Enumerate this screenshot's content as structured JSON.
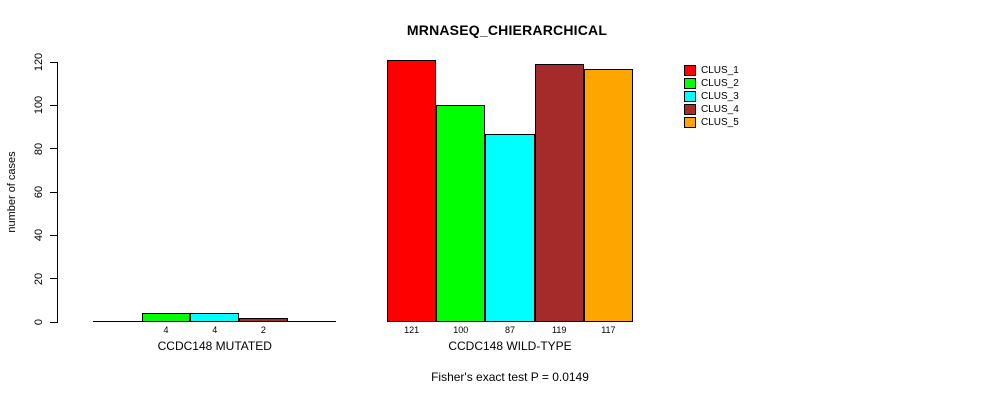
{
  "chart_data": {
    "type": "bar",
    "title": "MRNASEQ_CHIERARCHICAL",
    "ylabel": "number of cases",
    "xlabel": "",
    "ylim": [
      0,
      120
    ],
    "yticks": [
      0,
      20,
      40,
      60,
      80,
      100,
      120
    ],
    "grid": false,
    "legend_position": "right",
    "categories": [
      "CCDC148 MUTATED",
      "CCDC148 WILD-TYPE"
    ],
    "series": [
      {
        "name": "CLUS_1",
        "color": "#FF0000",
        "values": [
          0,
          121
        ]
      },
      {
        "name": "CLUS_2",
        "color": "#00FF00",
        "values": [
          4,
          100
        ]
      },
      {
        "name": "CLUS_3",
        "color": "#00FFFF",
        "values": [
          4,
          87
        ]
      },
      {
        "name": "CLUS_4",
        "color": "#A52A2A",
        "values": [
          2,
          119
        ]
      },
      {
        "name": "CLUS_5",
        "color": "#FFA500",
        "values": [
          0,
          117
        ]
      }
    ],
    "bar_labels": [
      [
        "",
        "4",
        "4",
        "2",
        ""
      ],
      [
        "121",
        "100",
        "87",
        "119",
        "117"
      ]
    ],
    "annotation": "Fisher's exact test P = 0.0149",
    "axis_color": "#000000",
    "background_color": "#FFFFFF"
  }
}
